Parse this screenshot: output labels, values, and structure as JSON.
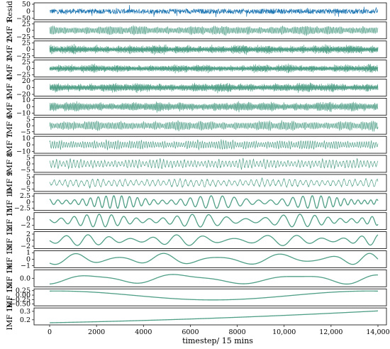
{
  "chart_data": {
    "type": "line",
    "xlabel": "timestep/ 15 mins",
    "xlim": [
      0,
      14000
    ],
    "xticks": [
      0,
      2000,
      4000,
      6000,
      8000,
      10000,
      12000,
      14000
    ],
    "xtick_labels": [
      "0",
      "2000",
      "4000",
      "6000",
      "8000",
      "10,000",
      "12,000",
      "14,000"
    ],
    "colors": {
      "residual": "#1f77b4",
      "imf": "#4f9e86"
    },
    "series": [
      {
        "name": "Resid",
        "ylim": [
          -60,
          60
        ],
        "yticks": [
          50,
          0,
          -50
        ],
        "ytick_labels": [
          "50",
          "0",
          "−50"
        ],
        "amplitude": 48,
        "cycles": 1400,
        "kind": "noise"
      },
      {
        "name": "IMF 1",
        "ylim": [
          -33,
          33
        ],
        "yticks": [
          25,
          0,
          -25
        ],
        "ytick_labels": [
          "25",
          "0",
          "−25"
        ],
        "amplitude": 25,
        "cycles": 1000,
        "kind": "burst"
      },
      {
        "name": "IMF 2",
        "ylim": [
          -33,
          33
        ],
        "yticks": [
          25,
          0,
          -25
        ],
        "ytick_labels": [
          "25",
          "0",
          "−25"
        ],
        "amplitude": 25,
        "cycles": 700,
        "kind": "burst"
      },
      {
        "name": "IMF 3",
        "ylim": [
          -33,
          33
        ],
        "yticks": [
          25,
          0,
          -25
        ],
        "ytick_labels": [
          "25",
          "0",
          "−25"
        ],
        "amplitude": 22,
        "cycles": 500,
        "kind": "burst"
      },
      {
        "name": "IMF 4",
        "ylim": [
          -25,
          25
        ],
        "yticks": [
          20,
          0,
          -20
        ],
        "ytick_labels": [
          "20",
          "0",
          "−20"
        ],
        "amplitude": 19,
        "cycles": 350,
        "kind": "burst"
      },
      {
        "name": "IMF 5",
        "ylim": [
          -13,
          13
        ],
        "yticks": [
          10,
          0,
          -10
        ],
        "ytick_labels": [
          "10",
          "0",
          "−10"
        ],
        "amplitude": 10,
        "cycles": 260,
        "kind": "burst"
      },
      {
        "name": "IMF 6",
        "ylim": [
          -7,
          7
        ],
        "yticks": [
          5,
          0,
          -5
        ],
        "ytick_labels": [
          "5",
          "0",
          "−5"
        ],
        "amplitude": 5.5,
        "cycles": 190,
        "kind": "burst"
      },
      {
        "name": "IMF 7",
        "ylim": [
          -13,
          13
        ],
        "yticks": [
          10,
          0,
          -10
        ],
        "ytick_labels": [
          "10",
          "0",
          "−10"
        ],
        "amplitude": 10,
        "cycles": 140,
        "kind": "burst"
      },
      {
        "name": "IMF 8",
        "ylim": [
          -7,
          7
        ],
        "yticks": [
          5,
          0,
          -5
        ],
        "ytick_labels": [
          "5",
          "0",
          "−5"
        ],
        "amplitude": 5.5,
        "cycles": 95,
        "kind": "burst"
      },
      {
        "name": "IMF 9",
        "ylim": [
          -7,
          7
        ],
        "yticks": [
          5,
          0,
          -5
        ],
        "ytick_labels": [
          "5",
          "0",
          "−5"
        ],
        "amplitude": 5,
        "cycles": 60,
        "kind": "burst"
      },
      {
        "name": "IMF 10",
        "ylim": [
          -3.5,
          3.5
        ],
        "yticks": [
          2.5,
          0,
          -2.5
        ],
        "ytick_labels": [
          "2.5",
          "0",
          "−2.5"
        ],
        "amplitude": 2.6,
        "cycles": 38,
        "kind": "wave"
      },
      {
        "name": "IMF 11",
        "ylim": [
          -3.3,
          2
        ],
        "yticks": [
          0,
          -2
        ],
        "ytick_labels": [
          "0",
          "−2"
        ],
        "amplitude": 2,
        "cycles": 24,
        "kind": "wave"
      },
      {
        "name": "IMF 12",
        "ylim": [
          -2.8,
          2.8
        ],
        "yticks": [
          2,
          0,
          -2
        ],
        "ytick_labels": [
          "2",
          "0",
          "−2"
        ],
        "amplitude": 1.8,
        "cycles": 14,
        "kind": "wave"
      },
      {
        "name": "IMF 13",
        "ylim": [
          -1.3,
          1.3
        ],
        "yticks": [
          1,
          0,
          -1
        ],
        "ytick_labels": [
          "1",
          "0",
          "−1"
        ],
        "amplitude": 0.9,
        "cycles": 7,
        "kind": "wave"
      },
      {
        "name": "IMF 14",
        "ylim": [
          -0.55,
          0.55
        ],
        "yticks": [
          0.0
        ],
        "ytick_labels": [
          "0.0"
        ],
        "amplitude": 0.38,
        "cycles": 3.5,
        "kind": "wave"
      },
      {
        "name": "IMF 15",
        "ylim": [
          -0.6,
          0.35
        ],
        "yticks": [
          0.25,
          0.0,
          -0.25,
          -0.5
        ],
        "ytick_labels": [
          "0.25",
          "0.00",
          "−0.25",
          "−0.50"
        ],
        "amplitude": 0.25,
        "cycles": 1.05,
        "kind": "slow"
      },
      {
        "name": "IMF 16",
        "ylim": [
          0.14,
          0.34
        ],
        "yticks": [
          0.3,
          0.2
        ],
        "ytick_labels": [
          "0.3",
          "0.2"
        ],
        "amplitude": 0.17,
        "cycles": 0,
        "kind": "trend"
      }
    ]
  }
}
